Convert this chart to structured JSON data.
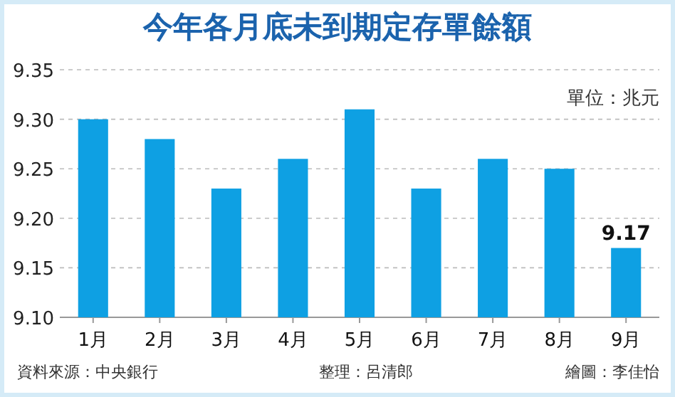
{
  "chart_data": {
    "type": "bar",
    "title": "今年各月底未到期定存單餘額",
    "categories": [
      "1月",
      "2月",
      "3月",
      "4月",
      "5月",
      "6月",
      "7月",
      "8月",
      "9月"
    ],
    "values": [
      9.3,
      9.28,
      9.23,
      9.26,
      9.31,
      9.23,
      9.26,
      9.25,
      9.17
    ],
    "value_labels": [
      null,
      null,
      null,
      null,
      null,
      null,
      null,
      null,
      "9.17"
    ],
    "color": "#0ea0e3",
    "ylim": [
      9.1,
      9.35
    ],
    "yticks": [
      {
        "value": 9.1,
        "label": "9.10"
      },
      {
        "value": 9.15,
        "label": "9.15"
      },
      {
        "value": 9.2,
        "label": "9.20"
      },
      {
        "value": 9.25,
        "label": "9.25"
      },
      {
        "value": 9.3,
        "label": "9.30"
      },
      {
        "value": 9.35,
        "label": "9.35"
      }
    ],
    "grid": "y",
    "annotations": [
      "單位：兆元",
      "資料來源：中央銀行",
      "整理：呂清郎",
      "繪圖：李佳怡"
    ]
  }
}
